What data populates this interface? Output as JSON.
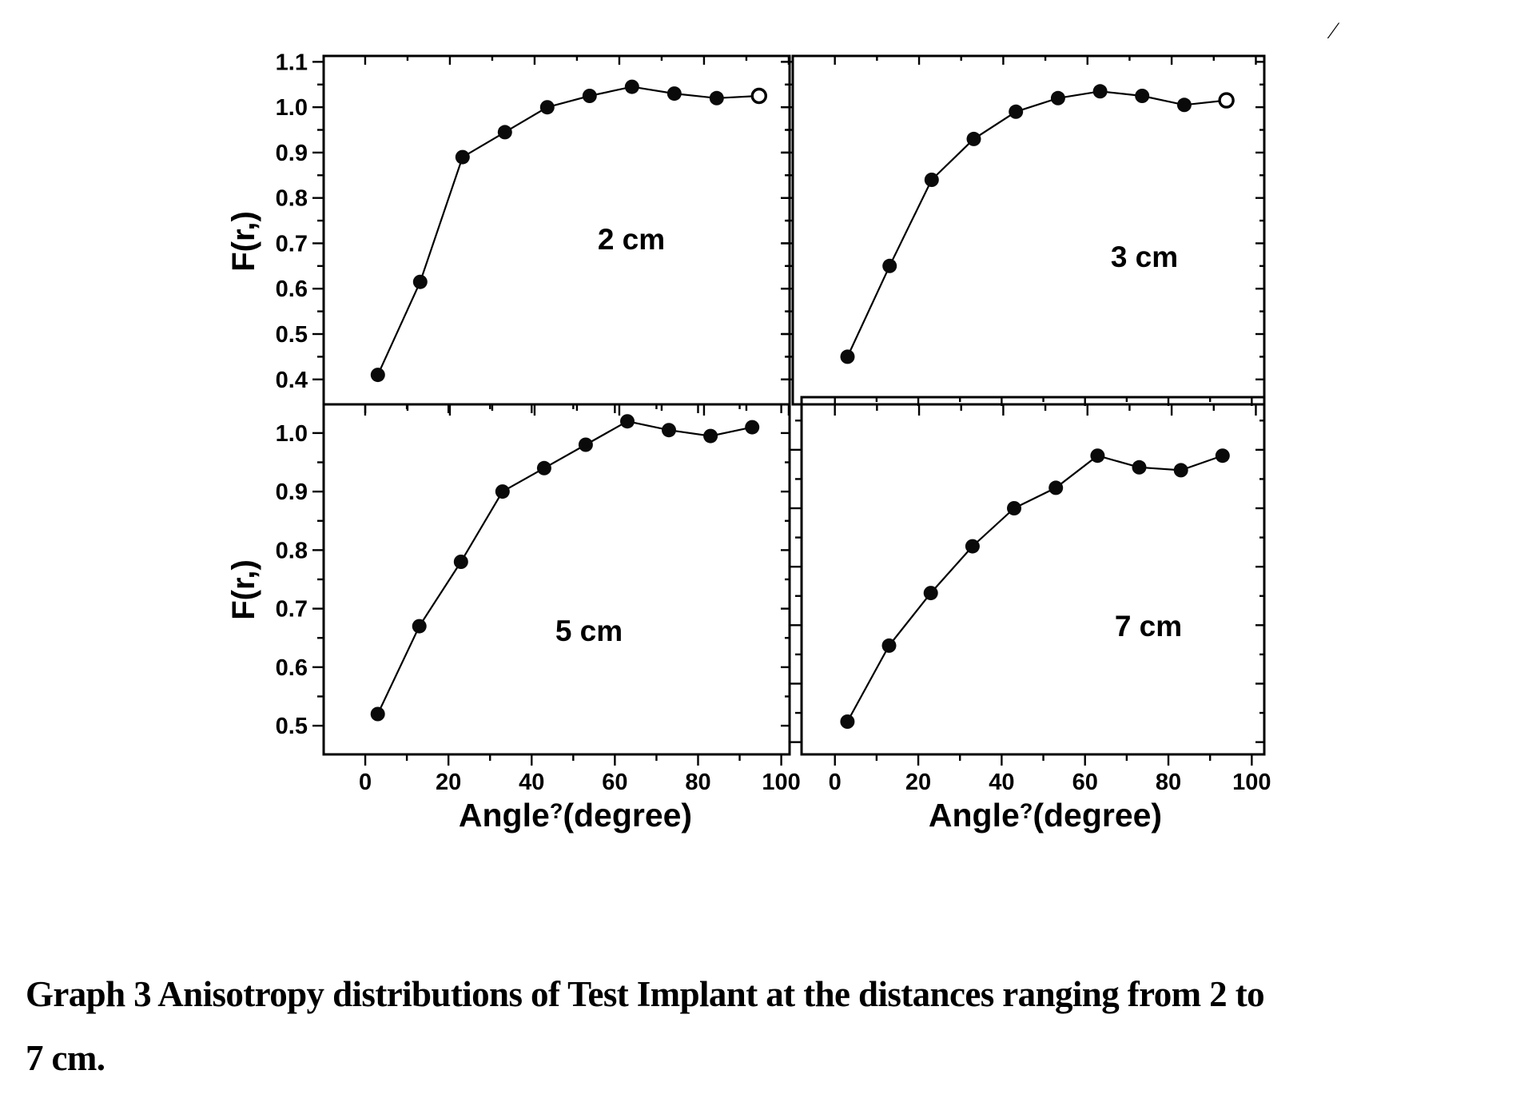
{
  "figure": {
    "y_axis_label": "F(r,)",
    "x_axis_label": {
      "prefix": "Angle",
      "theta": "?",
      "suffix": "(degree)"
    },
    "corner_mark": "⁄"
  },
  "caption": {
    "line1": "Graph 3 Anisotropy distributions of Test Implant at the distances ranging from 2 to",
    "line2": "7 cm."
  },
  "chart_data": [
    {
      "type": "line",
      "label": "2 cm",
      "xlabel": "Angle?(degree)",
      "ylabel": "F(r,)",
      "x": [
        3,
        13,
        23,
        33,
        43,
        53,
        63,
        73,
        83,
        93
      ],
      "values": [
        0.41,
        0.615,
        0.89,
        0.945,
        1.0,
        1.025,
        1.045,
        1.03,
        1.02,
        1.025
      ],
      "open_last_marker": true,
      "xlim": [
        -9.8,
        100.2
      ],
      "ylim": [
        0.345,
        1.113
      ],
      "xticks": [
        0,
        20,
        40,
        60,
        80,
        100
      ],
      "xminor": [
        10,
        30,
        50,
        70,
        90
      ],
      "yticks": [
        0.4,
        0.5,
        0.6,
        0.7,
        0.8,
        0.9,
        1.0,
        1.1
      ],
      "ytick_labels": [
        "0.4",
        "0.5",
        "0.6",
        "0.7",
        "0.8",
        "0.9",
        "1.0",
        "1.1"
      ],
      "yminor": [
        0.45,
        0.55,
        0.65,
        0.75,
        0.85,
        0.95,
        1.05
      ],
      "show_ytick_labels": true,
      "show_xtick_labels": false
    },
    {
      "type": "line",
      "label": "3 cm",
      "xlabel": "Angle?(degree)",
      "ylabel": "F(r,)",
      "x": [
        3,
        13,
        23,
        33,
        43,
        53,
        63,
        73,
        83,
        93
      ],
      "values": [
        0.45,
        0.65,
        0.84,
        0.93,
        0.99,
        1.02,
        1.035,
        1.025,
        1.005,
        1.015
      ],
      "open_last_marker": true,
      "xlim": [
        -10,
        102
      ],
      "ylim": [
        0.345,
        1.113
      ],
      "xticks": [
        0,
        20,
        40,
        60,
        80,
        100
      ],
      "xminor": [
        10,
        30,
        50,
        70,
        90
      ],
      "yticks": [
        0.4,
        0.5,
        0.6,
        0.7,
        0.8,
        0.9,
        1.0,
        1.1
      ],
      "ytick_labels": [],
      "yminor": [
        0.45,
        0.55,
        0.65,
        0.75,
        0.85,
        0.95,
        1.05
      ],
      "show_ytick_labels": false,
      "show_xtick_labels": false
    },
    {
      "type": "line",
      "label": "5 cm",
      "xlabel": "Angle?(degree)",
      "ylabel": "F(r,)",
      "x": [
        3,
        13,
        23,
        33,
        43,
        53,
        63,
        73,
        83,
        93
      ],
      "values": [
        0.52,
        0.67,
        0.78,
        0.9,
        0.94,
        0.98,
        1.02,
        1.005,
        0.995,
        1.01
      ],
      "open_last_marker": false,
      "xlim": [
        -10,
        102
      ],
      "ylim": [
        0.451,
        1.049
      ],
      "xticks": [
        0,
        20,
        40,
        60,
        80,
        100
      ],
      "xminor": [
        10,
        30,
        50,
        70,
        90
      ],
      "yticks": [
        0.5,
        0.6,
        0.7,
        0.8,
        0.9,
        1.0
      ],
      "ytick_labels": [
        "0.5",
        "0.6",
        "0.7",
        "0.8",
        "0.9",
        "1.0"
      ],
      "yminor": [
        0.55,
        0.65,
        0.75,
        0.85,
        0.95
      ],
      "show_ytick_labels": true,
      "show_xtick_labels": true
    },
    {
      "type": "line",
      "label": "7 cm",
      "xlabel": "Angle?(degree)",
      "ylabel": "F(r,)",
      "x": [
        3,
        13,
        23,
        33,
        43,
        53,
        63,
        73,
        83,
        93
      ],
      "values": [
        0.535,
        0.665,
        0.755,
        0.835,
        0.9,
        0.935,
        0.99,
        0.97,
        0.965,
        0.99
      ],
      "open_last_marker": false,
      "xlim": [
        -8,
        103
      ],
      "ylim": [
        0.479,
        1.09
      ],
      "xticks": [
        0,
        20,
        40,
        60,
        80,
        100
      ],
      "xminor": [
        10,
        30,
        50,
        70,
        90
      ],
      "yticks": [
        0.5,
        0.6,
        0.7,
        0.8,
        0.9,
        1.0
      ],
      "ytick_labels": [],
      "yminor": [
        0.55,
        0.65,
        0.75,
        0.85,
        0.95,
        1.05
      ],
      "show_ytick_labels": false,
      "show_xtick_labels": true
    }
  ]
}
